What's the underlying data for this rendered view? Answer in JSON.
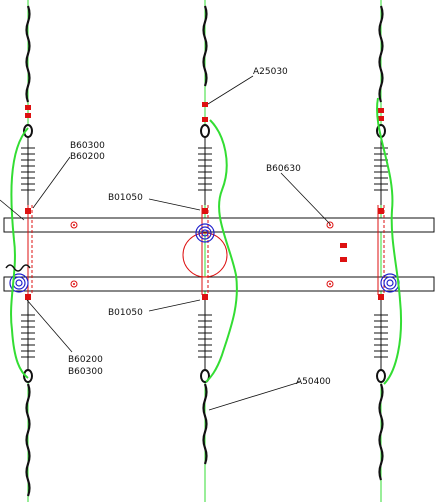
{
  "labels": {
    "a25030": "A25030",
    "b60300_top": "B60300",
    "b60200_top": "B60200",
    "b60630": "B60630",
    "b01050_top": "B01050",
    "b01050_bottom": "B01050",
    "b60200_bottom": "B60200",
    "b60300_bottom": "B60300",
    "a50400": "A50400"
  },
  "colors": {
    "background": "#ffffff",
    "line": "#111111",
    "conductor": "#33dd33",
    "marker": "#dd1111",
    "clamp": "#2222cc"
  }
}
